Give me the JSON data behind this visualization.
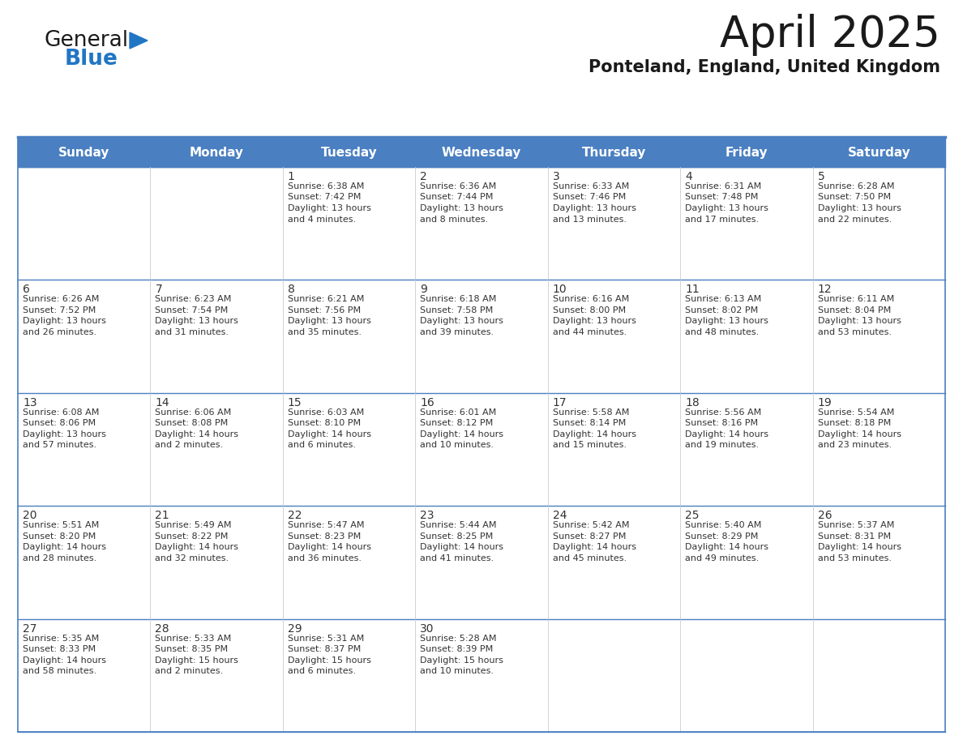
{
  "title": "April 2025",
  "subtitle": "Ponteland, England, United Kingdom",
  "header_color": "#4a7fc1",
  "header_text_color": "#FFFFFF",
  "grid_line_color": "#4a7fc1",
  "title_color": "#1a1a1a",
  "subtitle_color": "#1a1a1a",
  "cell_text_color": "#333333",
  "day_number_color": "#333333",
  "day_names": [
    "Sunday",
    "Monday",
    "Tuesday",
    "Wednesday",
    "Thursday",
    "Friday",
    "Saturday"
  ],
  "weeks": [
    [
      {
        "day": 0,
        "text": ""
      },
      {
        "day": 0,
        "text": ""
      },
      {
        "day": 1,
        "text": "Sunrise: 6:38 AM\nSunset: 7:42 PM\nDaylight: 13 hours\nand 4 minutes."
      },
      {
        "day": 2,
        "text": "Sunrise: 6:36 AM\nSunset: 7:44 PM\nDaylight: 13 hours\nand 8 minutes."
      },
      {
        "day": 3,
        "text": "Sunrise: 6:33 AM\nSunset: 7:46 PM\nDaylight: 13 hours\nand 13 minutes."
      },
      {
        "day": 4,
        "text": "Sunrise: 6:31 AM\nSunset: 7:48 PM\nDaylight: 13 hours\nand 17 minutes."
      },
      {
        "day": 5,
        "text": "Sunrise: 6:28 AM\nSunset: 7:50 PM\nDaylight: 13 hours\nand 22 minutes."
      }
    ],
    [
      {
        "day": 6,
        "text": "Sunrise: 6:26 AM\nSunset: 7:52 PM\nDaylight: 13 hours\nand 26 minutes."
      },
      {
        "day": 7,
        "text": "Sunrise: 6:23 AM\nSunset: 7:54 PM\nDaylight: 13 hours\nand 31 minutes."
      },
      {
        "day": 8,
        "text": "Sunrise: 6:21 AM\nSunset: 7:56 PM\nDaylight: 13 hours\nand 35 minutes."
      },
      {
        "day": 9,
        "text": "Sunrise: 6:18 AM\nSunset: 7:58 PM\nDaylight: 13 hours\nand 39 minutes."
      },
      {
        "day": 10,
        "text": "Sunrise: 6:16 AM\nSunset: 8:00 PM\nDaylight: 13 hours\nand 44 minutes."
      },
      {
        "day": 11,
        "text": "Sunrise: 6:13 AM\nSunset: 8:02 PM\nDaylight: 13 hours\nand 48 minutes."
      },
      {
        "day": 12,
        "text": "Sunrise: 6:11 AM\nSunset: 8:04 PM\nDaylight: 13 hours\nand 53 minutes."
      }
    ],
    [
      {
        "day": 13,
        "text": "Sunrise: 6:08 AM\nSunset: 8:06 PM\nDaylight: 13 hours\nand 57 minutes."
      },
      {
        "day": 14,
        "text": "Sunrise: 6:06 AM\nSunset: 8:08 PM\nDaylight: 14 hours\nand 2 minutes."
      },
      {
        "day": 15,
        "text": "Sunrise: 6:03 AM\nSunset: 8:10 PM\nDaylight: 14 hours\nand 6 minutes."
      },
      {
        "day": 16,
        "text": "Sunrise: 6:01 AM\nSunset: 8:12 PM\nDaylight: 14 hours\nand 10 minutes."
      },
      {
        "day": 17,
        "text": "Sunrise: 5:58 AM\nSunset: 8:14 PM\nDaylight: 14 hours\nand 15 minutes."
      },
      {
        "day": 18,
        "text": "Sunrise: 5:56 AM\nSunset: 8:16 PM\nDaylight: 14 hours\nand 19 minutes."
      },
      {
        "day": 19,
        "text": "Sunrise: 5:54 AM\nSunset: 8:18 PM\nDaylight: 14 hours\nand 23 minutes."
      }
    ],
    [
      {
        "day": 20,
        "text": "Sunrise: 5:51 AM\nSunset: 8:20 PM\nDaylight: 14 hours\nand 28 minutes."
      },
      {
        "day": 21,
        "text": "Sunrise: 5:49 AM\nSunset: 8:22 PM\nDaylight: 14 hours\nand 32 minutes."
      },
      {
        "day": 22,
        "text": "Sunrise: 5:47 AM\nSunset: 8:23 PM\nDaylight: 14 hours\nand 36 minutes."
      },
      {
        "day": 23,
        "text": "Sunrise: 5:44 AM\nSunset: 8:25 PM\nDaylight: 14 hours\nand 41 minutes."
      },
      {
        "day": 24,
        "text": "Sunrise: 5:42 AM\nSunset: 8:27 PM\nDaylight: 14 hours\nand 45 minutes."
      },
      {
        "day": 25,
        "text": "Sunrise: 5:40 AM\nSunset: 8:29 PM\nDaylight: 14 hours\nand 49 minutes."
      },
      {
        "day": 26,
        "text": "Sunrise: 5:37 AM\nSunset: 8:31 PM\nDaylight: 14 hours\nand 53 minutes."
      }
    ],
    [
      {
        "day": 27,
        "text": "Sunrise: 5:35 AM\nSunset: 8:33 PM\nDaylight: 14 hours\nand 58 minutes."
      },
      {
        "day": 28,
        "text": "Sunrise: 5:33 AM\nSunset: 8:35 PM\nDaylight: 15 hours\nand 2 minutes."
      },
      {
        "day": 29,
        "text": "Sunrise: 5:31 AM\nSunset: 8:37 PM\nDaylight: 15 hours\nand 6 minutes."
      },
      {
        "day": 30,
        "text": "Sunrise: 5:28 AM\nSunset: 8:39 PM\nDaylight: 15 hours\nand 10 minutes."
      },
      {
        "day": 0,
        "text": ""
      },
      {
        "day": 0,
        "text": ""
      },
      {
        "day": 0,
        "text": ""
      }
    ]
  ],
  "logo_text1": "General",
  "logo_text2": "Blue",
  "logo_color1": "#1a1a1a",
  "logo_color2": "#2176c4",
  "logo_triangle_color": "#2176c4",
  "title_fontsize": 38,
  "subtitle_fontsize": 15,
  "header_fontsize": 11,
  "day_num_fontsize": 10,
  "cell_text_fontsize": 8
}
